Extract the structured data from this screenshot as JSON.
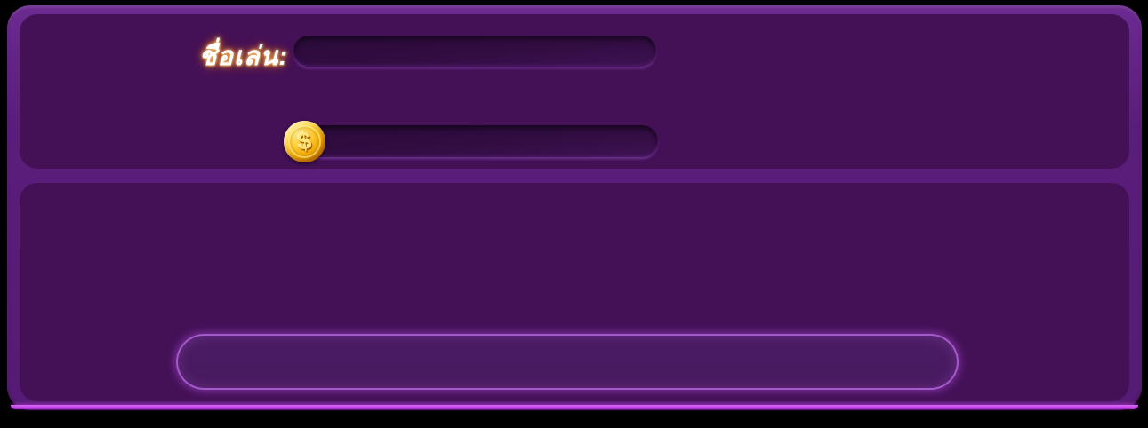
{
  "dialog": {
    "profile": {
      "nickname_label": "ชื่อเล่น:",
      "nickname_value": "",
      "balance_value": "",
      "coin_symbol": "$"
    },
    "action": {
      "button_label": ""
    }
  },
  "colors": {
    "page_background": "#000000",
    "frame": "#5b1d7b",
    "frame_top_light": "#6b2a90",
    "frame_bottom_glow": "#c840f0",
    "panel": "#441157",
    "field_fill": "#310d42",
    "field_fill_deep": "#2a0a39",
    "field_edge_highlight": "#8b4cb0",
    "action_fill": "#4a1c63",
    "action_border_glow": "#bb60e4",
    "label_glow": "#ff9a2a",
    "coin_gold": "#ffd23e"
  }
}
